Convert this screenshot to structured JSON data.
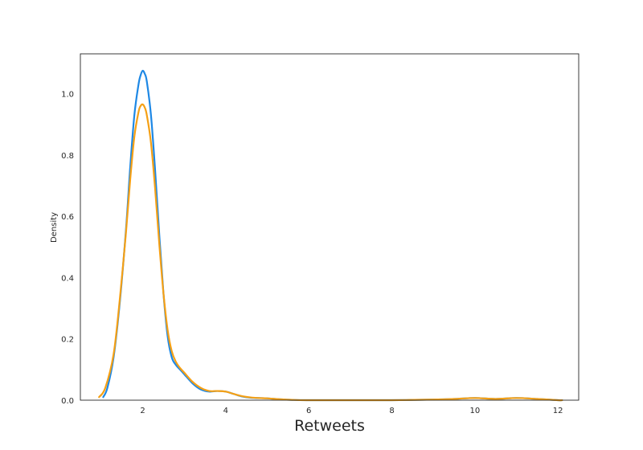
{
  "chart_data": {
    "type": "line",
    "title": "",
    "xlabel": "Retweets",
    "ylabel": "Density",
    "xlim": [
      0.5,
      12.5
    ],
    "ylim": [
      0,
      1.13
    ],
    "xticks": [
      2,
      4,
      6,
      8,
      10,
      12
    ],
    "yticks": [
      0.0,
      0.2,
      0.4,
      0.6,
      0.8,
      1.0
    ],
    "xtick_labels": [
      "2",
      "4",
      "6",
      "8",
      "10",
      "12"
    ],
    "ytick_labels": [
      "0.0",
      "0.2",
      "0.4",
      "0.6",
      "0.8",
      "1.0"
    ],
    "grid": false,
    "legend": "none",
    "series": [
      {
        "color": "#1e88e5",
        "x": [
          1.05,
          1.15,
          1.3,
          1.45,
          1.6,
          1.7,
          1.8,
          1.9,
          1.95,
          2.0,
          2.05,
          2.1,
          2.2,
          2.3,
          2.4,
          2.5,
          2.6,
          2.7,
          2.8,
          2.9,
          3.0,
          3.2,
          3.4,
          3.6,
          3.8,
          4.0,
          4.2,
          4.4,
          4.6,
          4.8,
          5.0,
          5.3,
          5.6,
          6.0,
          7.0,
          8.0,
          9.0,
          9.5,
          10.0,
          10.5,
          11.0,
          11.5,
          12.0,
          12.1
        ],
        "y": [
          0.01,
          0.04,
          0.14,
          0.32,
          0.56,
          0.76,
          0.93,
          1.03,
          1.06,
          1.075,
          1.065,
          1.04,
          0.93,
          0.75,
          0.54,
          0.35,
          0.21,
          0.14,
          0.115,
          0.1,
          0.085,
          0.055,
          0.035,
          0.028,
          0.03,
          0.028,
          0.02,
          0.012,
          0.008,
          0.007,
          0.006,
          0.003,
          0.001,
          0.0,
          0.0,
          0.0,
          0.002,
          0.004,
          0.007,
          0.004,
          0.007,
          0.004,
          0.0,
          0.0
        ]
      },
      {
        "color": "#f5a015",
        "x": [
          0.95,
          1.1,
          1.3,
          1.45,
          1.6,
          1.7,
          1.8,
          1.9,
          1.95,
          2.0,
          2.05,
          2.1,
          2.2,
          2.3,
          2.4,
          2.5,
          2.6,
          2.7,
          2.8,
          2.9,
          3.0,
          3.2,
          3.4,
          3.6,
          3.8,
          4.0,
          4.2,
          4.4,
          4.6,
          4.8,
          5.0,
          5.3,
          5.6,
          6.0,
          7.0,
          8.0,
          9.0,
          9.5,
          10.0,
          10.5,
          11.0,
          11.5,
          12.0,
          12.1
        ],
        "y": [
          0.01,
          0.04,
          0.15,
          0.33,
          0.55,
          0.72,
          0.86,
          0.94,
          0.96,
          0.965,
          0.955,
          0.93,
          0.84,
          0.69,
          0.51,
          0.35,
          0.23,
          0.16,
          0.125,
          0.105,
          0.09,
          0.06,
          0.04,
          0.03,
          0.03,
          0.028,
          0.02,
          0.013,
          0.009,
          0.007,
          0.006,
          0.003,
          0.001,
          0.0,
          0.0,
          0.0,
          0.002,
          0.004,
          0.007,
          0.004,
          0.007,
          0.004,
          0.0,
          0.0
        ]
      }
    ]
  }
}
